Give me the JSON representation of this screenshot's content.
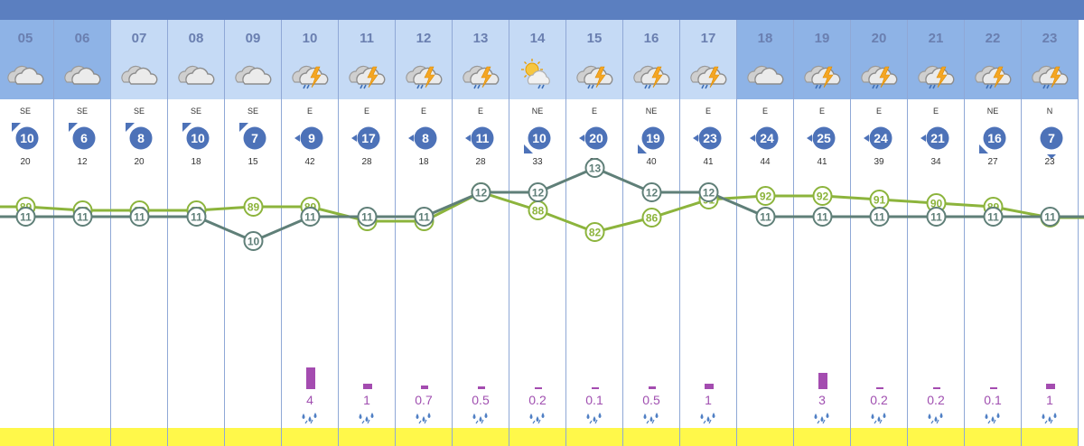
{
  "forecast": {
    "hours": [
      {
        "hour": "05",
        "sky": "cloudy",
        "dir": "SE",
        "wind": 10,
        "wind_dir": "SE",
        "gust": 20,
        "humidity": 89,
        "temp": 11,
        "rain": "",
        "day": false
      },
      {
        "hour": "06",
        "sky": "cloudy",
        "dir": "SE",
        "wind": 6,
        "wind_dir": "SE",
        "gust": 12,
        "humidity": 88,
        "temp": 11,
        "rain": "",
        "day": false
      },
      {
        "hour": "07",
        "sky": "cloudy",
        "dir": "SE",
        "wind": 8,
        "wind_dir": "SE",
        "gust": 20,
        "humidity": 88,
        "temp": 11,
        "rain": "",
        "day": true
      },
      {
        "hour": "08",
        "sky": "cloudy",
        "dir": "SE",
        "wind": 10,
        "wind_dir": "SE",
        "gust": 18,
        "humidity": 88,
        "temp": 11,
        "rain": "",
        "day": true
      },
      {
        "hour": "09",
        "sky": "cloudy",
        "dir": "SE",
        "wind": 7,
        "wind_dir": "SE",
        "gust": 15,
        "humidity": 89,
        "temp": 10,
        "rain": "",
        "day": true
      },
      {
        "hour": "10",
        "sky": "storm",
        "dir": "E",
        "wind": 9,
        "wind_dir": "E",
        "gust": 42,
        "humidity": 89,
        "temp": 11,
        "rain": "4",
        "day": true
      },
      {
        "hour": "11",
        "sky": "storm",
        "dir": "E",
        "wind": 17,
        "wind_dir": "E",
        "gust": 28,
        "humidity": 85,
        "temp": 11,
        "rain": "1",
        "day": true
      },
      {
        "hour": "12",
        "sky": "storm",
        "dir": "E",
        "wind": 8,
        "wind_dir": "E",
        "gust": 18,
        "humidity": 85,
        "temp": 11,
        "rain": "0.7",
        "day": true
      },
      {
        "hour": "13",
        "sky": "storm",
        "dir": "E",
        "wind": 11,
        "wind_dir": "E",
        "gust": 28,
        "humidity": 93,
        "temp": 12,
        "rain": "0.5",
        "day": true
      },
      {
        "hour": "14",
        "sky": "sunstorm",
        "dir": "NE",
        "wind": 10,
        "wind_dir": "NE",
        "gust": 33,
        "humidity": 88,
        "temp": 12,
        "rain": "0.2",
        "day": true
      },
      {
        "hour": "15",
        "sky": "storm",
        "dir": "E",
        "wind": 20,
        "wind_dir": "E",
        "gust": 33,
        "humidity": 82,
        "temp": 13,
        "rain": "0.1",
        "day": true
      },
      {
        "hour": "16",
        "sky": "storm",
        "dir": "NE",
        "wind": 19,
        "wind_dir": "NE",
        "gust": 40,
        "humidity": 86,
        "temp": 12,
        "rain": "0.5",
        "day": true
      },
      {
        "hour": "17",
        "sky": "storm",
        "dir": "E",
        "wind": 23,
        "wind_dir": "E",
        "gust": 41,
        "humidity": 91,
        "temp": 12,
        "rain": "1",
        "day": true
      },
      {
        "hour": "18",
        "sky": "cloudy",
        "dir": "E",
        "wind": 24,
        "wind_dir": "E",
        "gust": 44,
        "humidity": 92,
        "temp": 11,
        "rain": "",
        "day": false
      },
      {
        "hour": "19",
        "sky": "storm",
        "dir": "E",
        "wind": 25,
        "wind_dir": "E",
        "gust": 41,
        "humidity": 92,
        "temp": 11,
        "rain": "3",
        "day": false
      },
      {
        "hour": "20",
        "sky": "storm",
        "dir": "E",
        "wind": 24,
        "wind_dir": "E",
        "gust": 39,
        "humidity": 91,
        "temp": 11,
        "rain": "0.2",
        "day": false
      },
      {
        "hour": "21",
        "sky": "storm",
        "dir": "E",
        "wind": 21,
        "wind_dir": "E",
        "gust": 34,
        "humidity": 90,
        "temp": 11,
        "rain": "0.2",
        "day": false
      },
      {
        "hour": "22",
        "sky": "storm",
        "dir": "NE",
        "wind": 16,
        "wind_dir": "NE",
        "gust": 27,
        "humidity": 89,
        "temp": 11,
        "rain": "0.1",
        "day": false
      },
      {
        "hour": "23",
        "sky": "storm",
        "dir": "N",
        "wind": 7,
        "wind_dir": "N",
        "gust": 23,
        "humidity": 86,
        "temp": 11,
        "rain": "1",
        "day": false
      }
    ]
  },
  "colors": {
    "header_day": "#c5daf5",
    "header_night": "#8eb3e6",
    "wind_circle": "#4d72b8",
    "humidity_line": "#8cb43c",
    "temp_line": "#5f7f78",
    "rain": "#a44cb0",
    "footer": "#fff84a"
  }
}
